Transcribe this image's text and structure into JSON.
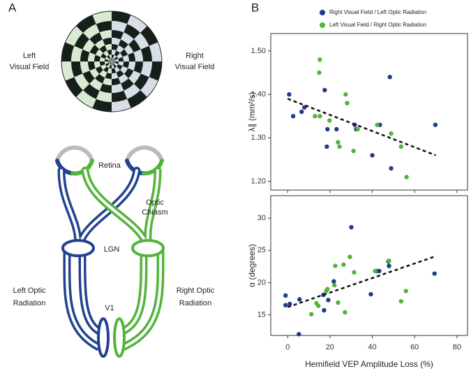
{
  "panels": [
    "A",
    "B"
  ],
  "diagram": {
    "left_field": [
      "Left",
      "Visual Field"
    ],
    "right_field": [
      "Right",
      "Visual Field"
    ],
    "retina": "Retina",
    "chiasm": [
      "Optic",
      "Chiasm"
    ],
    "lgn": "LGN",
    "left_radiation": [
      "Left Optic",
      "Radiation"
    ],
    "right_radiation": [
      "Right Optic",
      "Radiation"
    ],
    "v1": "V1"
  },
  "chart_data": [
    {
      "type": "scatter",
      "ylabel": "λ∥ (mm²/s)",
      "legend": "upper right",
      "xlim": [
        -8,
        85
      ],
      "xticks": [
        0,
        20,
        40,
        60,
        80
      ],
      "ylim": [
        1.18,
        1.54
      ],
      "yticks": [
        {
          "value": 1.2,
          "label": "1.20"
        },
        {
          "value": 1.3,
          "label": "1.30"
        },
        {
          "value": 1.4,
          "label": "1.40"
        },
        {
          "value": 1.5,
          "label": "1.50"
        }
      ],
      "series": [
        {
          "name": "Right Visual Field / Left Optic Radiation",
          "color": "#1f3b8c",
          "x": [
            0.7,
            2.6,
            6.6,
            7.9,
            17.5,
            18.8,
            18.5,
            23.1,
            32.4,
            31.7,
            40,
            43.6,
            48.3,
            48.9,
            69.8
          ],
          "values": [
            1.4,
            1.35,
            1.36,
            1.37,
            1.41,
            1.32,
            1.28,
            1.32,
            1.32,
            1.33,
            1.26,
            1.33,
            1.44,
            1.23,
            1.33
          ]
        },
        {
          "name": "Left Visual Field / Right Optic Radiation",
          "color": "#52b43a",
          "x": [
            15.2,
            14.9,
            12.9,
            15.2,
            19.8,
            23.8,
            24.5,
            27.4,
            28.1,
            31.1,
            33.1,
            42.3,
            48.9,
            53.6,
            56.2
          ],
          "values": [
            1.48,
            1.45,
            1.35,
            1.35,
            1.34,
            1.29,
            1.28,
            1.4,
            1.38,
            1.27,
            1.32,
            1.33,
            1.31,
            1.28,
            1.21
          ]
        }
      ],
      "trendline": {
        "x": [
          0,
          70
        ],
        "values": [
          1.39,
          1.26
        ]
      }
    },
    {
      "type": "scatter",
      "ylabel": "α (degrees)",
      "xlabel": "Hemifield VEP Amplitude Loss (%)",
      "xlim": [
        -8,
        85
      ],
      "xticks": [
        0,
        20,
        40,
        60,
        80
      ],
      "ylim": [
        11.8,
        33.5
      ],
      "yticks": [
        15,
        20,
        25,
        30
      ],
      "series": [
        {
          "color": "#1f3b8c",
          "x": [
            -1,
            -1,
            1,
            5.6,
            5.3,
            16.9,
            17.2,
            19.2,
            21.8,
            30.1,
            39.3,
            42,
            43.3,
            47.6,
            47.9,
            69.4
          ],
          "values": [
            18,
            16.5,
            16.7,
            17.4,
            12,
            18.1,
            15.7,
            17.3,
            20.2,
            28.6,
            18.2,
            21.8,
            21.8,
            23.3,
            22.6,
            21.4
          ]
        },
        {
          "color": "#52b43a",
          "x": [
            11.2,
            13.6,
            14.5,
            18.2,
            18.8,
            22.1,
            22.5,
            23.8,
            26.4,
            27.1,
            29.4,
            31.4,
            41.3,
            47.9,
            53.6,
            55.9
          ],
          "values": [
            15.1,
            16.8,
            16.4,
            18.7,
            19,
            19.6,
            22.6,
            16.9,
            22.8,
            15.4,
            24,
            21.6,
            21.8,
            23.4,
            17.1,
            18.7
          ]
        }
      ],
      "trendline": {
        "x": [
          0,
          70
        ],
        "values": [
          16.2,
          24.1
        ]
      }
    }
  ]
}
